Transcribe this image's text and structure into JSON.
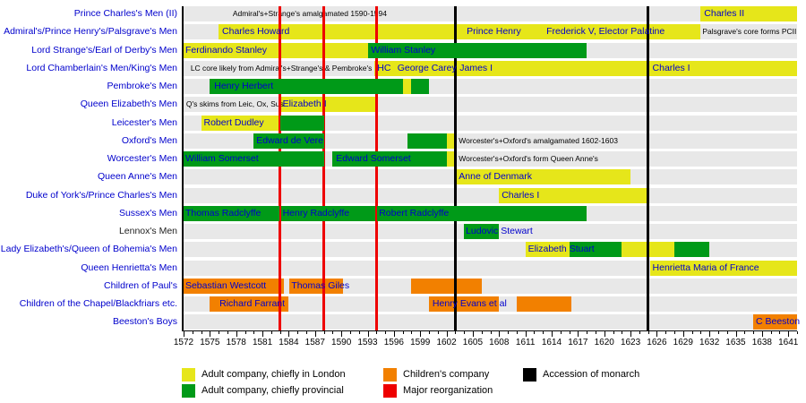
{
  "chart_data": {
    "type": "bar",
    "variant": "gantt-timeline",
    "title": "",
    "axis": {
      "start": 1572,
      "end": 1642,
      "tick_step": 3,
      "tick_labels": [
        1572,
        1575,
        1578,
        1581,
        1584,
        1587,
        1590,
        1593,
        1596,
        1599,
        1602,
        1605,
        1608,
        1611,
        1614,
        1617,
        1620,
        1623,
        1626,
        1629,
        1632,
        1635,
        1638,
        1641
      ]
    },
    "colors": {
      "london": "#e6e61a",
      "provincial": "#009a18",
      "children": "#f28000",
      "reorg": "#ee0000",
      "accession": "#000000",
      "row_bg": "#e8e8e8",
      "label_blue": "#0000cc"
    },
    "vlines": [
      {
        "year": 1583,
        "type": "reorg"
      },
      {
        "year": 1588,
        "type": "reorg"
      },
      {
        "year": 1594,
        "type": "reorg"
      },
      {
        "year": 1603,
        "type": "accession"
      },
      {
        "year": 1625,
        "type": "accession"
      }
    ],
    "rows": [
      {
        "label": "Prince Charles's Men (II)",
        "label_color": "#0000cc",
        "segments": [
          {
            "start": 1631,
            "end": 1642,
            "type": "london"
          }
        ],
        "texts": [
          {
            "year": 1586.4,
            "label": "Admiral's+Strange's amalgamated 1590-1594",
            "style": "note",
            "align": "center"
          },
          {
            "year": 1631.4,
            "label": "Charles II",
            "style": "bar",
            "align": "left"
          }
        ]
      },
      {
        "label": "Admiral's/Prince Henry's/Palsgrave's Men",
        "label_color": "#0000cc",
        "segments": [
          {
            "start": 1576,
            "end": 1631,
            "type": "london"
          }
        ],
        "texts": [
          {
            "year": 1576.4,
            "label": "Charles Howard",
            "style": "bar",
            "align": "left"
          },
          {
            "year": 1604.3,
            "label": "Prince Henry",
            "style": "bar",
            "align": "left"
          },
          {
            "year": 1613.4,
            "label": "Frederick V, Elector Palatine",
            "style": "bar",
            "align": "left"
          },
          {
            "year": 1631.2,
            "label": "Palsgrave's core forms PCII",
            "style": "note",
            "align": "left"
          }
        ]
      },
      {
        "label": "Lord Strange's/Earl of Derby's Men",
        "label_color": "#0000cc",
        "segments": [
          {
            "start": 1572,
            "end": 1593,
            "type": "london"
          },
          {
            "start": 1593,
            "end": 1618,
            "type": "provincial"
          }
        ],
        "texts": [
          {
            "year": 1572.2,
            "label": "Ferdinando Stanley",
            "style": "bar",
            "align": "left"
          },
          {
            "year": 1593.4,
            "label": "William Stanley",
            "style": "bar",
            "align": "left"
          }
        ]
      },
      {
        "label": "Lord Chamberlain's Men/King's Men",
        "label_color": "#0000cc",
        "segments": [
          {
            "start": 1593.8,
            "end": 1642,
            "type": "london"
          }
        ],
        "texts": [
          {
            "year": 1593.5,
            "label": "LC core likely from Admiral's+Strange's & Pembroke's",
            "style": "note",
            "align": "right"
          },
          {
            "year": 1594.1,
            "label": "HC",
            "style": "bar",
            "align": "left"
          },
          {
            "year": 1596.4,
            "label": "George Carey",
            "style": "bar",
            "align": "left"
          },
          {
            "year": 1603.5,
            "label": "James I",
            "style": "bar",
            "align": "left"
          },
          {
            "year": 1625.5,
            "label": "Charles I",
            "style": "bar",
            "align": "left"
          }
        ]
      },
      {
        "label": "Pembroke's Men",
        "label_color": "#0000cc",
        "segments": [
          {
            "start": 1575,
            "end": 1597,
            "type": "provincial"
          },
          {
            "start": 1597,
            "end": 1598,
            "type": "london"
          },
          {
            "start": 1598,
            "end": 1600,
            "type": "provincial"
          }
        ],
        "texts": [
          {
            "year": 1575.5,
            "label": "Henry Herbert",
            "style": "bar",
            "align": "left"
          }
        ]
      },
      {
        "label": "Queen Elizabeth's Men",
        "label_color": "#0000cc",
        "segments": [
          {
            "start": 1583,
            "end": 1594,
            "type": "london"
          }
        ],
        "texts": [
          {
            "year": 1572.3,
            "label": "Q's skims from Leic, Ox, Sus",
            "style": "note",
            "align": "left"
          },
          {
            "year": 1583.3,
            "label": "Elizabeth I",
            "style": "bar",
            "align": "left"
          }
        ]
      },
      {
        "label": "Leicester's Men",
        "label_color": "#0000cc",
        "segments": [
          {
            "start": 1574,
            "end": 1583,
            "type": "london"
          },
          {
            "start": 1583,
            "end": 1588,
            "type": "provincial"
          }
        ],
        "texts": [
          {
            "year": 1574.3,
            "label": "Robert Dudley",
            "style": "bar",
            "align": "left"
          }
        ]
      },
      {
        "label": "Oxford's Men",
        "label_color": "#0000cc",
        "segments": [
          {
            "start": 1580,
            "end": 1588,
            "type": "provincial"
          },
          {
            "start": 1597.5,
            "end": 1602,
            "type": "provincial"
          },
          {
            "start": 1602,
            "end": 1603,
            "type": "london"
          }
        ],
        "texts": [
          {
            "year": 1580.3,
            "label": "Edward de Vere",
            "style": "bar",
            "align": "left"
          },
          {
            "year": 1603.4,
            "label": "Worcester's+Oxford's amalgamated 1602-1603",
            "style": "note",
            "align": "left"
          }
        ]
      },
      {
        "label": "Worcester's Men",
        "label_color": "#0000cc",
        "segments": [
          {
            "start": 1572,
            "end": 1588,
            "type": "provincial"
          },
          {
            "start": 1589,
            "end": 1602,
            "type": "provincial"
          },
          {
            "start": 1602,
            "end": 1603,
            "type": "london"
          }
        ],
        "texts": [
          {
            "year": 1572.2,
            "label": "William Somerset",
            "style": "bar",
            "align": "left"
          },
          {
            "year": 1589.4,
            "label": "Edward Somerset",
            "style": "bar",
            "align": "left"
          },
          {
            "year": 1603.4,
            "label": "Worcester's+Oxford's form Queen Anne's",
            "style": "note",
            "align": "left"
          }
        ]
      },
      {
        "label": "Queen Anne's Men",
        "label_color": "#0000cc",
        "segments": [
          {
            "start": 1603,
            "end": 1623,
            "type": "london"
          }
        ],
        "texts": [
          {
            "year": 1603.4,
            "label": "Anne of Denmark",
            "style": "bar",
            "align": "left"
          }
        ]
      },
      {
        "label": "Duke of York's/Prince Charles's Men",
        "label_color": "#0000cc",
        "segments": [
          {
            "start": 1608,
            "end": 1625,
            "type": "london"
          }
        ],
        "texts": [
          {
            "year": 1608.3,
            "label": "Charles I",
            "style": "bar",
            "align": "left"
          }
        ]
      },
      {
        "label": "Sussex's Men",
        "label_color": "#0000cc",
        "segments": [
          {
            "start": 1572,
            "end": 1582.9,
            "type": "provincial"
          },
          {
            "start": 1583.1,
            "end": 1593.9,
            "type": "provincial"
          },
          {
            "start": 1594.1,
            "end": 1618,
            "type": "provincial"
          }
        ],
        "texts": [
          {
            "year": 1572.2,
            "label": "Thomas Radclyffe",
            "style": "bar",
            "align": "left"
          },
          {
            "year": 1583.3,
            "label": "Henry Radclyffe",
            "style": "bar",
            "align": "left"
          },
          {
            "year": 1594.3,
            "label": "Robert Radclyffe",
            "style": "bar",
            "align": "left"
          }
        ]
      },
      {
        "label": "Lennox's Men",
        "label_color": "#222222",
        "segments": [
          {
            "start": 1604,
            "end": 1608,
            "type": "provincial"
          }
        ],
        "texts": [
          {
            "year": 1604.2,
            "label": "Ludovic Stewart",
            "style": "bar",
            "align": "left"
          }
        ]
      },
      {
        "label": "Lady Elizabeth's/Queen of Bohemia's Men",
        "label_color": "#0000cc",
        "segments": [
          {
            "start": 1611,
            "end": 1616,
            "type": "london"
          },
          {
            "start": 1616,
            "end": 1622,
            "type": "provincial"
          },
          {
            "start": 1622,
            "end": 1628,
            "type": "london"
          },
          {
            "start": 1628,
            "end": 1632,
            "type": "provincial"
          }
        ],
        "texts": [
          {
            "year": 1611.3,
            "label": "Elizabeth Stuart",
            "style": "bar",
            "align": "left"
          }
        ]
      },
      {
        "label": "Queen Henrietta's Men",
        "label_color": "#0000cc",
        "segments": [
          {
            "start": 1625.2,
            "end": 1642,
            "type": "london"
          }
        ],
        "texts": [
          {
            "year": 1625.5,
            "label": "Henrietta Maria of France",
            "style": "bar",
            "align": "left"
          }
        ]
      },
      {
        "label": "Children of Paul's",
        "label_color": "#0000cc",
        "segments": [
          {
            "start": 1572,
            "end": 1583.4,
            "type": "children"
          },
          {
            "start": 1584.1,
            "end": 1590.2,
            "type": "children"
          },
          {
            "start": 1598,
            "end": 1606,
            "type": "children"
          }
        ],
        "texts": [
          {
            "year": 1572.2,
            "label": "Sebastian Westcott",
            "style": "bar",
            "align": "left"
          },
          {
            "year": 1584.3,
            "label": "Thomas Giles",
            "style": "bar",
            "align": "left"
          }
        ]
      },
      {
        "label": "Children of the Chapel/Blackfriars etc.",
        "label_color": "#0000cc",
        "segments": [
          {
            "start": 1575,
            "end": 1584,
            "type": "children"
          },
          {
            "start": 1600,
            "end": 1608,
            "type": "children"
          },
          {
            "start": 1610,
            "end": 1616.2,
            "type": "children"
          }
        ],
        "texts": [
          {
            "year": 1576.1,
            "label": "Richard Farrant",
            "style": "bar",
            "align": "left"
          },
          {
            "year": 1600.4,
            "label": "Henry Evans et al",
            "style": "bar",
            "align": "left"
          }
        ]
      },
      {
        "label": "Beeston's Boys",
        "label_color": "#0000cc",
        "segments": [
          {
            "start": 1637,
            "end": 1642,
            "type": "children"
          }
        ],
        "texts": [
          {
            "year": 1637.3,
            "label": "C Beeston",
            "style": "bar",
            "align": "left"
          }
        ]
      }
    ],
    "legend": [
      {
        "color": "#e6e61a",
        "label": "Adult company, chiefly in London",
        "col": 0,
        "row": 0
      },
      {
        "color": "#009a18",
        "label": "Adult company, chiefly provincial",
        "col": 0,
        "row": 1
      },
      {
        "color": "#f28000",
        "label": "Children's company",
        "col": 1,
        "row": 0
      },
      {
        "color": "#ee0000",
        "label": "Major reorganization",
        "col": 1,
        "row": 1
      },
      {
        "color": "#000000",
        "label": "Accession of monarch",
        "col": 2,
        "row": 0
      }
    ]
  }
}
